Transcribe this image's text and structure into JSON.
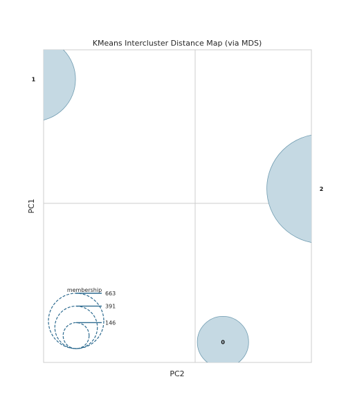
{
  "chart_data": {
    "type": "scatter",
    "title": "KMeans Intercluster Distance Map (via MDS)",
    "xlabel": "PC2",
    "ylabel": "PC1",
    "grid": true,
    "legend": {
      "title": "membership",
      "placement": "bottom-left",
      "values": [
        "146",
        "391",
        "663"
      ]
    },
    "clusters": [
      {
        "label": "1",
        "x": -0.95,
        "y": 0.85,
        "size": 391
      },
      {
        "label": "2",
        "x": 0.95,
        "y": 0.1,
        "size": 663
      },
      {
        "label": "0",
        "x": 0.3,
        "y": -0.95,
        "size": 146
      }
    ],
    "colors": {
      "fill": "#c5d9e3",
      "stroke": "#6f9bb0",
      "legend": "#2c6a8f",
      "grid": "#cccccc",
      "frame": "#cccccc"
    }
  }
}
